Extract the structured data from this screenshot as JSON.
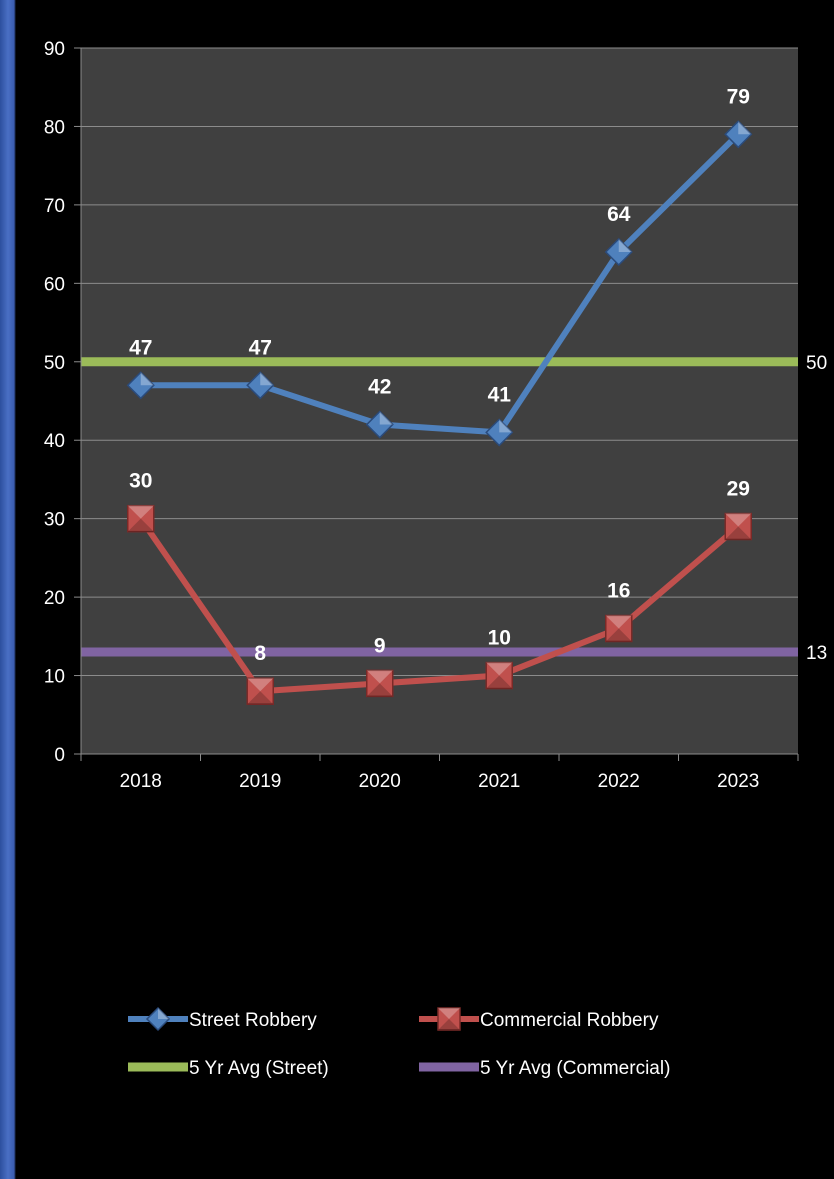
{
  "chart_data": {
    "type": "line",
    "categories": [
      "2018",
      "2019",
      "2020",
      "2021",
      "2022",
      "2023"
    ],
    "ylim": [
      0,
      90
    ],
    "y_ticks": [
      "0",
      "10",
      "20",
      "30",
      "40",
      "50",
      "60",
      "70",
      "80",
      "90"
    ],
    "grid": true,
    "plot_background": "#404040",
    "series": [
      {
        "name": "Street Robbery",
        "values": [
          47,
          47,
          42,
          41,
          64,
          79
        ],
        "labels": [
          "47",
          "47",
          "42",
          "41",
          "64",
          "79"
        ],
        "color": "#4f81bd",
        "marker": "diamond"
      },
      {
        "name": "Commercial Robbery",
        "values": [
          30,
          8,
          9,
          10,
          16,
          29
        ],
        "labels": [
          "30",
          "8",
          "9",
          "10",
          "16",
          "29"
        ],
        "color": "#c0504d",
        "marker": "square"
      }
    ],
    "reference_lines": [
      {
        "name": "5 Yr Avg (Street)",
        "value": 50,
        "label": "50",
        "color": "#9bbb59"
      },
      {
        "name": "5 Yr Avg (Commercial)",
        "value": 13,
        "label": "13",
        "color": "#8064a2"
      }
    ],
    "legend": "bottom"
  }
}
